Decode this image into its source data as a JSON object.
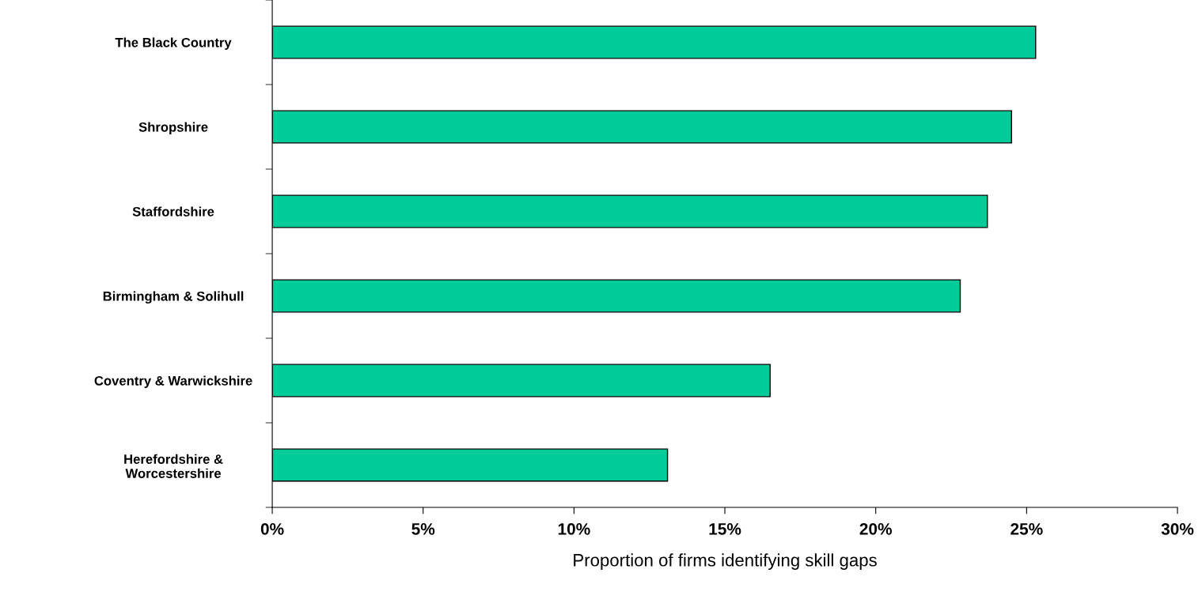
{
  "chart_data": {
    "type": "bar",
    "orientation": "horizontal",
    "xlabel": "Proportion of firms identifying skill gaps",
    "categories": [
      "The Black Country",
      "Shropshire",
      "Staffordshire",
      "Birmingham & Solihull",
      "Coventry & Warwickshire",
      "Herefordshire &\nWorcestershire"
    ],
    "values": [
      25.3,
      24.5,
      23.7,
      22.8,
      16.5,
      13.1
    ],
    "color": "#00cc99",
    "xlim": [
      0,
      30
    ],
    "xticks": [
      {
        "value": 0,
        "label": "0%"
      },
      {
        "value": 5,
        "label": "5%"
      },
      {
        "value": 10,
        "label": "10%"
      },
      {
        "value": 15,
        "label": "15%"
      },
      {
        "value": 20,
        "label": "20%"
      },
      {
        "value": 25,
        "label": "25%"
      },
      {
        "value": 30,
        "label": "30%"
      }
    ],
    "grid": false,
    "legend": false
  }
}
